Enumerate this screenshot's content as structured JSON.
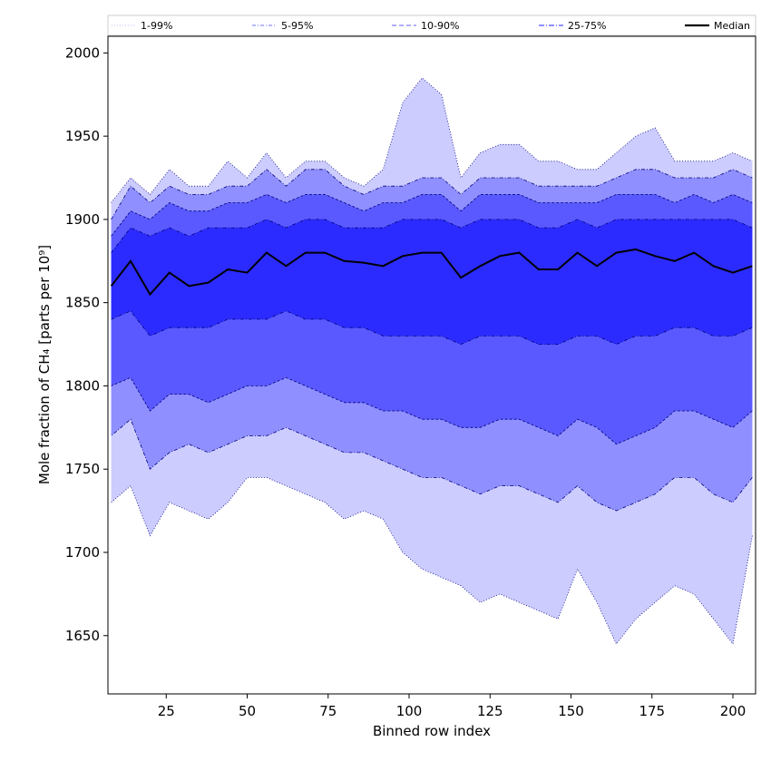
{
  "chart_data": {
    "type": "area",
    "title": "",
    "xlabel": "Binned row index",
    "ylabel": "Mole fraction of CH₄ [parts per 10⁹]",
    "xlim": [
      7,
      207
    ],
    "ylim": [
      1615,
      2010
    ],
    "x_ticks": [
      25,
      50,
      75,
      100,
      125,
      150,
      175,
      200
    ],
    "y_ticks": [
      1650,
      1700,
      1750,
      1800,
      1850,
      1900,
      1950,
      2000
    ],
    "grid": false,
    "legend": {
      "position": "top",
      "entries": [
        {
          "label": "1-99%",
          "style": "dotted",
          "color": "#ccccff"
        },
        {
          "label": "5-95%",
          "style": "dashdot",
          "color": "#8f8fff"
        },
        {
          "label": "10-90%",
          "style": "dashed",
          "color": "#8080ff"
        },
        {
          "label": "25-75%",
          "style": "dashdot",
          "color": "#4d4dff"
        },
        {
          "label": "Median",
          "style": "solid",
          "color": "#000000"
        }
      ]
    },
    "colors": {
      "band_1_99": "#ccccff",
      "band_5_95": "#8f8fff",
      "band_10_90": "#5959ff",
      "band_25_75": "#2b2bff",
      "median": "#000000",
      "band_edge": "#000080"
    },
    "x": [
      8,
      14,
      20,
      26,
      32,
      38,
      44,
      50,
      56,
      62,
      68,
      74,
      80,
      86,
      92,
      98,
      104,
      110,
      116,
      122,
      128,
      134,
      140,
      146,
      152,
      158,
      164,
      170,
      176,
      182,
      188,
      194,
      200,
      206
    ],
    "series": [
      {
        "name": "1-99%",
        "lower": [
          1730,
          1740,
          1710,
          1730,
          1725,
          1720,
          1730,
          1745,
          1745,
          1740,
          1735,
          1730,
          1720,
          1725,
          1720,
          1700,
          1690,
          1685,
          1680,
          1670,
          1675,
          1670,
          1665,
          1660,
          1690,
          1670,
          1645,
          1660,
          1670,
          1680,
          1675,
          1660,
          1645,
          1710
        ],
        "upper": [
          1910,
          1925,
          1915,
          1930,
          1920,
          1920,
          1935,
          1925,
          1940,
          1925,
          1935,
          1935,
          1925,
          1920,
          1930,
          1970,
          1985,
          1975,
          1925,
          1940,
          1945,
          1945,
          1935,
          1935,
          1930,
          1930,
          1940,
          1950,
          1955,
          1935,
          1935,
          1935,
          1940,
          1935
        ]
      },
      {
        "name": "5-95%",
        "lower": [
          1770,
          1780,
          1750,
          1760,
          1765,
          1760,
          1765,
          1770,
          1770,
          1775,
          1770,
          1765,
          1760,
          1760,
          1755,
          1750,
          1745,
          1745,
          1740,
          1735,
          1740,
          1740,
          1735,
          1730,
          1740,
          1730,
          1725,
          1730,
          1735,
          1745,
          1745,
          1735,
          1730,
          1745
        ],
        "upper": [
          1900,
          1920,
          1910,
          1920,
          1915,
          1915,
          1920,
          1920,
          1930,
          1920,
          1930,
          1930,
          1920,
          1915,
          1920,
          1920,
          1925,
          1925,
          1915,
          1925,
          1925,
          1925,
          1920,
          1920,
          1920,
          1920,
          1925,
          1930,
          1930,
          1925,
          1925,
          1925,
          1930,
          1925
        ]
      },
      {
        "name": "10-90%",
        "lower": [
          1800,
          1805,
          1785,
          1795,
          1795,
          1790,
          1795,
          1800,
          1800,
          1805,
          1800,
          1795,
          1790,
          1790,
          1785,
          1785,
          1780,
          1780,
          1775,
          1775,
          1780,
          1780,
          1775,
          1770,
          1780,
          1775,
          1765,
          1770,
          1775,
          1785,
          1785,
          1780,
          1775,
          1785
        ],
        "upper": [
          1890,
          1905,
          1900,
          1910,
          1905,
          1905,
          1910,
          1910,
          1915,
          1910,
          1915,
          1915,
          1910,
          1905,
          1910,
          1910,
          1915,
          1915,
          1905,
          1915,
          1915,
          1915,
          1910,
          1910,
          1910,
          1910,
          1915,
          1915,
          1915,
          1910,
          1915,
          1910,
          1915,
          1910
        ]
      },
      {
        "name": "25-75%",
        "lower": [
          1840,
          1845,
          1830,
          1835,
          1835,
          1835,
          1840,
          1840,
          1840,
          1845,
          1840,
          1840,
          1835,
          1835,
          1830,
          1830,
          1830,
          1830,
          1825,
          1830,
          1830,
          1830,
          1825,
          1825,
          1830,
          1830,
          1825,
          1830,
          1830,
          1835,
          1835,
          1830,
          1830,
          1835
        ],
        "upper": [
          1880,
          1895,
          1890,
          1895,
          1890,
          1895,
          1895,
          1895,
          1900,
          1895,
          1900,
          1900,
          1895,
          1895,
          1895,
          1900,
          1900,
          1900,
          1895,
          1900,
          1900,
          1900,
          1895,
          1895,
          1900,
          1895,
          1900,
          1900,
          1900,
          1900,
          1900,
          1900,
          1900,
          1895
        ]
      },
      {
        "name": "Median",
        "values": [
          1860,
          1875,
          1855,
          1868,
          1860,
          1862,
          1870,
          1868,
          1880,
          1872,
          1880,
          1880,
          1875,
          1874,
          1872,
          1878,
          1880,
          1880,
          1865,
          1872,
          1878,
          1880,
          1870,
          1870,
          1880,
          1872,
          1880,
          1882,
          1878,
          1875,
          1880,
          1872,
          1868,
          1872
        ]
      }
    ]
  }
}
